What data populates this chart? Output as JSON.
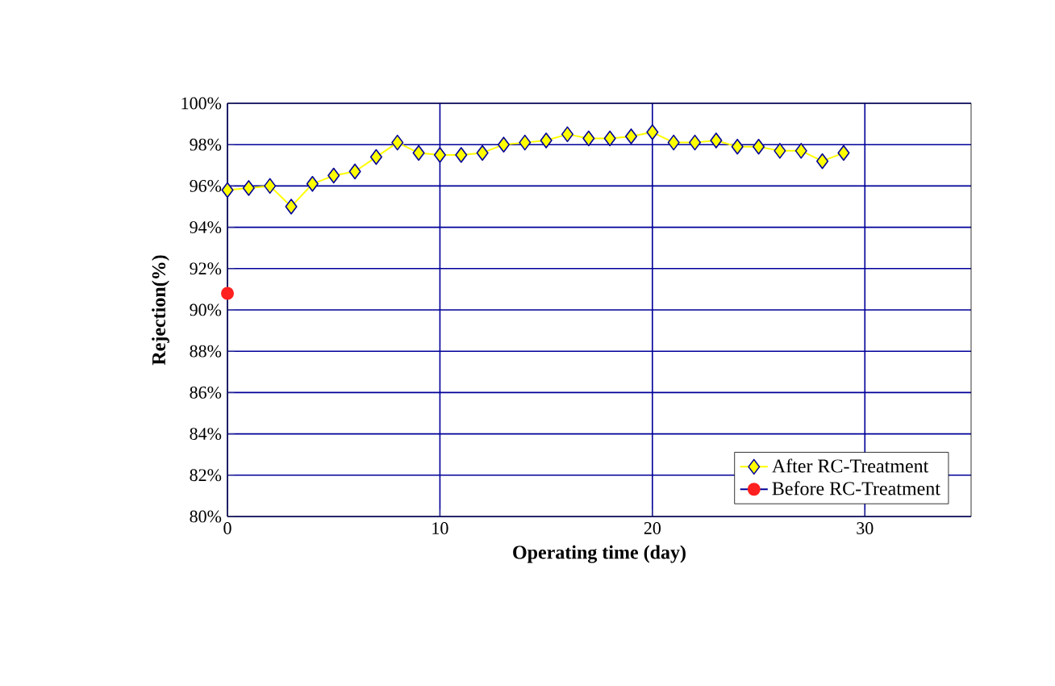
{
  "chart_data": {
    "type": "line",
    "xlabel": "Operating time (day)",
    "ylabel": "Rejection(%)",
    "xlim": [
      0,
      35
    ],
    "xticks": [
      0,
      10,
      20,
      30
    ],
    "ylim": [
      80,
      100
    ],
    "yticks": [
      {
        "value": 80,
        "label": "80%"
      },
      {
        "value": 82,
        "label": "82%"
      },
      {
        "value": 84,
        "label": "84%"
      },
      {
        "value": 86,
        "label": "86%"
      },
      {
        "value": 88,
        "label": "88%"
      },
      {
        "value": 90,
        "label": "90%"
      },
      {
        "value": 92,
        "label": "92%"
      },
      {
        "value": 94,
        "label": "94%"
      },
      {
        "value": 96,
        "label": "96%"
      },
      {
        "value": 98,
        "label": "98%"
      },
      {
        "value": 100,
        "label": "100%"
      }
    ],
    "grid": true,
    "legend": "bottom right",
    "series": [
      {
        "name": "After RC-Treatment",
        "color": "#ffff00",
        "marker": "diamond",
        "x": [
          0,
          1,
          2,
          3,
          4,
          5,
          6,
          7,
          8,
          9,
          10,
          11,
          12,
          13,
          14,
          15,
          16,
          17,
          18,
          19,
          20,
          21,
          22,
          23,
          24,
          25,
          26,
          27,
          28,
          29
        ],
        "values": [
          95.8,
          95.9,
          96.0,
          95.0,
          96.1,
          96.5,
          96.7,
          97.4,
          98.1,
          97.6,
          97.5,
          97.5,
          97.6,
          98.0,
          98.1,
          98.2,
          98.5,
          98.3,
          98.3,
          98.4,
          98.6,
          98.1,
          98.1,
          98.2,
          97.9,
          97.9,
          97.7,
          97.7,
          97.2,
          97.6
        ]
      },
      {
        "name": "Before RC-Treatment",
        "color": "#ff2020",
        "marker": "circle",
        "x": [
          0
        ],
        "values": [
          90.8
        ]
      }
    ]
  }
}
